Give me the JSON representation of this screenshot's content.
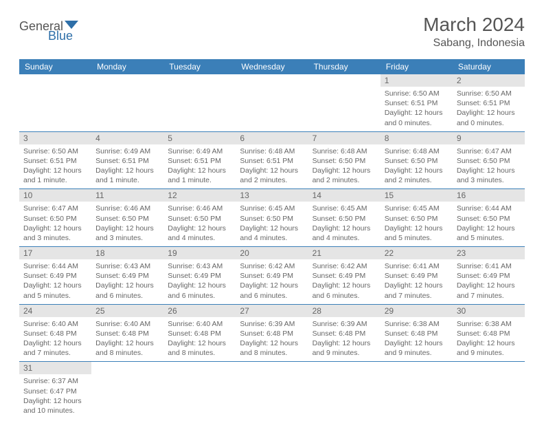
{
  "brand": {
    "name1": "General",
    "name2": "Blue"
  },
  "colors": {
    "headerBar": "#3b7fb8",
    "dayNumBg": "#e5e5e5",
    "rowBorder": "#3b7fb8",
    "logoBlue": "#2e6fa8",
    "textGray": "#555555"
  },
  "title": "March 2024",
  "location": "Sabang, Indonesia",
  "dayNames": [
    "Sunday",
    "Monday",
    "Tuesday",
    "Wednesday",
    "Thursday",
    "Friday",
    "Saturday"
  ],
  "weeks": [
    [
      null,
      null,
      null,
      null,
      null,
      {
        "n": "1",
        "sr": "6:50 AM",
        "ss": "6:51 PM",
        "dl": "12 hours and 0 minutes."
      },
      {
        "n": "2",
        "sr": "6:50 AM",
        "ss": "6:51 PM",
        "dl": "12 hours and 0 minutes."
      }
    ],
    [
      {
        "n": "3",
        "sr": "6:50 AM",
        "ss": "6:51 PM",
        "dl": "12 hours and 1 minute."
      },
      {
        "n": "4",
        "sr": "6:49 AM",
        "ss": "6:51 PM",
        "dl": "12 hours and 1 minute."
      },
      {
        "n": "5",
        "sr": "6:49 AM",
        "ss": "6:51 PM",
        "dl": "12 hours and 1 minute."
      },
      {
        "n": "6",
        "sr": "6:48 AM",
        "ss": "6:51 PM",
        "dl": "12 hours and 2 minutes."
      },
      {
        "n": "7",
        "sr": "6:48 AM",
        "ss": "6:50 PM",
        "dl": "12 hours and 2 minutes."
      },
      {
        "n": "8",
        "sr": "6:48 AM",
        "ss": "6:50 PM",
        "dl": "12 hours and 2 minutes."
      },
      {
        "n": "9",
        "sr": "6:47 AM",
        "ss": "6:50 PM",
        "dl": "12 hours and 3 minutes."
      }
    ],
    [
      {
        "n": "10",
        "sr": "6:47 AM",
        "ss": "6:50 PM",
        "dl": "12 hours and 3 minutes."
      },
      {
        "n": "11",
        "sr": "6:46 AM",
        "ss": "6:50 PM",
        "dl": "12 hours and 3 minutes."
      },
      {
        "n": "12",
        "sr": "6:46 AM",
        "ss": "6:50 PM",
        "dl": "12 hours and 4 minutes."
      },
      {
        "n": "13",
        "sr": "6:45 AM",
        "ss": "6:50 PM",
        "dl": "12 hours and 4 minutes."
      },
      {
        "n": "14",
        "sr": "6:45 AM",
        "ss": "6:50 PM",
        "dl": "12 hours and 4 minutes."
      },
      {
        "n": "15",
        "sr": "6:45 AM",
        "ss": "6:50 PM",
        "dl": "12 hours and 5 minutes."
      },
      {
        "n": "16",
        "sr": "6:44 AM",
        "ss": "6:50 PM",
        "dl": "12 hours and 5 minutes."
      }
    ],
    [
      {
        "n": "17",
        "sr": "6:44 AM",
        "ss": "6:49 PM",
        "dl": "12 hours and 5 minutes."
      },
      {
        "n": "18",
        "sr": "6:43 AM",
        "ss": "6:49 PM",
        "dl": "12 hours and 6 minutes."
      },
      {
        "n": "19",
        "sr": "6:43 AM",
        "ss": "6:49 PM",
        "dl": "12 hours and 6 minutes."
      },
      {
        "n": "20",
        "sr": "6:42 AM",
        "ss": "6:49 PM",
        "dl": "12 hours and 6 minutes."
      },
      {
        "n": "21",
        "sr": "6:42 AM",
        "ss": "6:49 PM",
        "dl": "12 hours and 6 minutes."
      },
      {
        "n": "22",
        "sr": "6:41 AM",
        "ss": "6:49 PM",
        "dl": "12 hours and 7 minutes."
      },
      {
        "n": "23",
        "sr": "6:41 AM",
        "ss": "6:49 PM",
        "dl": "12 hours and 7 minutes."
      }
    ],
    [
      {
        "n": "24",
        "sr": "6:40 AM",
        "ss": "6:48 PM",
        "dl": "12 hours and 7 minutes."
      },
      {
        "n": "25",
        "sr": "6:40 AM",
        "ss": "6:48 PM",
        "dl": "12 hours and 8 minutes."
      },
      {
        "n": "26",
        "sr": "6:40 AM",
        "ss": "6:48 PM",
        "dl": "12 hours and 8 minutes."
      },
      {
        "n": "27",
        "sr": "6:39 AM",
        "ss": "6:48 PM",
        "dl": "12 hours and 8 minutes."
      },
      {
        "n": "28",
        "sr": "6:39 AM",
        "ss": "6:48 PM",
        "dl": "12 hours and 9 minutes."
      },
      {
        "n": "29",
        "sr": "6:38 AM",
        "ss": "6:48 PM",
        "dl": "12 hours and 9 minutes."
      },
      {
        "n": "30",
        "sr": "6:38 AM",
        "ss": "6:48 PM",
        "dl": "12 hours and 9 minutes."
      }
    ],
    [
      {
        "n": "31",
        "sr": "6:37 AM",
        "ss": "6:47 PM",
        "dl": "12 hours and 10 minutes."
      },
      null,
      null,
      null,
      null,
      null,
      null
    ]
  ],
  "labels": {
    "sunrise": "Sunrise: ",
    "sunset": "Sunset: ",
    "daylight": "Daylight: "
  }
}
